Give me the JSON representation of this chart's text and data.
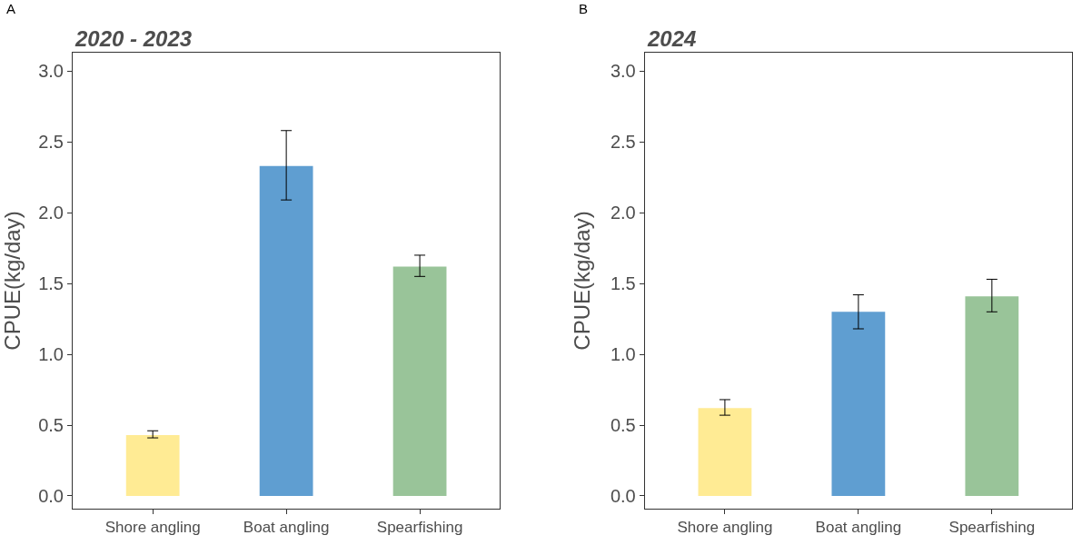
{
  "chart_data": [
    {
      "type": "bar",
      "title": "2020 - 2023",
      "ylabel": "CPUE(kg/day)",
      "annotations": [
        "A"
      ],
      "categories": [
        "Shore angling",
        "Boat angling",
        "Spearfishing"
      ],
      "values": [
        0.43,
        2.33,
        1.62
      ],
      "colors": [
        "#ffeb94",
        "#5f9ed1",
        "#99c499"
      ],
      "errors": [
        [
          0.41,
          0.46
        ],
        [
          2.09,
          2.58
        ],
        [
          1.55,
          1.7
        ]
      ],
      "ylim": [
        -0.09,
        3.13
      ],
      "yticks": [
        {
          "value": 0,
          "label": "0.0"
        },
        {
          "value": 0.5,
          "label": "0.5"
        },
        {
          "value": 1,
          "label": "1.0"
        },
        {
          "value": 1.5,
          "label": "1.5"
        },
        {
          "value": 2,
          "label": "2.0"
        },
        {
          "value": 2.5,
          "label": "2.5"
        },
        {
          "value": 3,
          "label": "3.0"
        }
      ]
    },
    {
      "type": "bar",
      "title": "2024",
      "ylabel": "CPUE(kg/day)",
      "annotations": [
        "B"
      ],
      "categories": [
        "Shore angling",
        "Boat angling",
        "Spearfishing"
      ],
      "values": [
        0.62,
        1.3,
        1.41
      ],
      "colors": [
        "#ffeb94",
        "#5f9ed1",
        "#99c499"
      ],
      "errors": [
        [
          0.57,
          0.68
        ],
        [
          1.18,
          1.42
        ],
        [
          1.3,
          1.53
        ]
      ],
      "ylim": [
        -0.09,
        3.13
      ],
      "yticks": [
        {
          "value": 0,
          "label": "0.0"
        },
        {
          "value": 0.5,
          "label": "0.5"
        },
        {
          "value": 1,
          "label": "1.0"
        },
        {
          "value": 1.5,
          "label": "1.5"
        },
        {
          "value": 2,
          "label": "2.0"
        },
        {
          "value": 2.5,
          "label": "2.5"
        },
        {
          "value": 3,
          "label": "3.0"
        }
      ]
    }
  ]
}
